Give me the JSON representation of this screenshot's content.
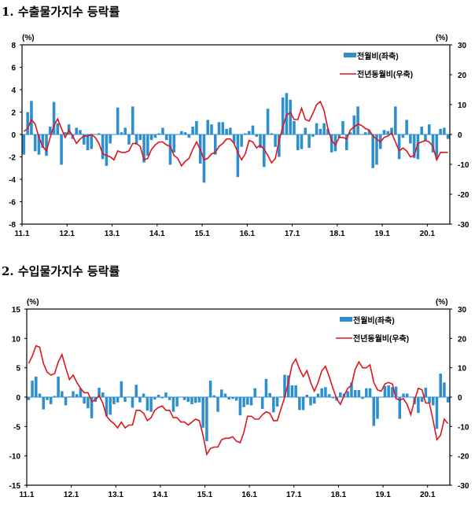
{
  "colors": {
    "bar": "#2f8fce",
    "line": "#e0141c"
  },
  "chart_data": [
    {
      "type": "bar+line",
      "title": "1. 수출물가지수 등락률",
      "left_unit": "(%)",
      "right_unit": "(%)",
      "ylim_left": [
        -8,
        8
      ],
      "yticks_left": [
        8,
        6,
        4,
        2,
        0,
        -2,
        -4,
        -6,
        -8
      ],
      "ylim_right": [
        -30,
        30
      ],
      "yticks_right": [
        30,
        20,
        10,
        0,
        -10,
        -20,
        -30
      ],
      "xtick_labels": [
        "11.1",
        "12.1",
        "13.1",
        "14.1",
        "15.1",
        "16.1",
        "17.1",
        "18.1",
        "19.1",
        "20.1"
      ],
      "legend": "top-right",
      "series": [
        {
          "name": "전월비(좌축)",
          "type": "bar",
          "axis": "left",
          "values": [
            -1.8,
            2.0,
            3.0,
            -1.5,
            -1.8,
            -1.2,
            -1.9,
            0.7,
            2.9,
            1.0,
            -2.7,
            0.2,
            0.9,
            -0.4,
            0.6,
            0.4,
            -0.9,
            -1.4,
            -1.3,
            0.0,
            0.1,
            -2.2,
            -2.8,
            -0.8,
            0.0,
            2.4,
            0.2,
            0.6,
            -0.9,
            2.5,
            -0.9,
            -0.5,
            -2.5,
            -1.9,
            -0.5,
            -0.3,
            0.1,
            0.6,
            -0.5,
            -2.7,
            -1.6,
            0.0,
            0.3,
            0.2,
            -0.3,
            0.7,
            1.2,
            -2.6,
            -4.3,
            1.3,
            0.9,
            -1.8,
            1.1,
            1.1,
            0.5,
            0.6,
            -0.8,
            -3.8,
            -1.1,
            0.1,
            0.3,
            0.8,
            -0.2,
            -1.2,
            -2.9,
            2.3,
            0.1,
            -1.1,
            -2.0,
            3.3,
            3.7,
            3.1,
            1.2,
            -1.4,
            -1.3,
            0.6,
            -1.2,
            -0.2,
            1.0,
            0.5,
            1.0,
            0.5,
            -1.6,
            -1.5,
            -0.3,
            1.2,
            -1.4,
            0.2,
            1.7,
            2.5,
            0.0,
            0.2,
            0.4,
            -3.0,
            -2.7,
            -1.3,
            0.4,
            0.3,
            0.6,
            2.5,
            -2.2,
            -0.3,
            1.3,
            -0.8,
            -2.1,
            -2.2,
            0.7,
            -0.6,
            0.9,
            -1.6,
            -2.2,
            0.5,
            0.6,
            -0.4
          ]
        },
        {
          "name": "전년동월비(우축)",
          "type": "line",
          "axis": "right",
          "values": [
            1,
            2,
            5,
            3.5,
            -1,
            -4,
            -5.5,
            -1,
            3,
            5.2,
            2,
            -1,
            1.5,
            -0.5,
            -3,
            -1.5,
            -0.5,
            -0.5,
            0,
            -1,
            -3,
            -6.5,
            -7,
            -7.5,
            -8.5,
            -5.5,
            -6,
            -6,
            -5.5,
            -3,
            -3,
            -4,
            -8.5,
            -8,
            -5,
            -3.5,
            -2.5,
            -2.5,
            -3.5,
            -4,
            -7,
            -8,
            -10.5,
            -9,
            -8,
            -5,
            -2.5,
            -5,
            -8.5,
            -8,
            -6.5,
            -6,
            -4,
            -3,
            -1.5,
            -1.5,
            -3,
            -6,
            -8.5,
            -6.5,
            -2,
            -2.5,
            -4.5,
            -3.5,
            -5,
            -7,
            -9.5,
            -8,
            -2,
            2.5,
            6.5,
            7.3,
            5,
            5,
            8.8,
            5,
            4.5,
            7,
            10,
            11,
            8,
            2,
            -2,
            -3.5,
            -1,
            -1,
            -1.5,
            1.5,
            2.5,
            3.5,
            3,
            2,
            1.5,
            -0.5,
            -1.5,
            -2.5,
            -1,
            -0.5,
            0.5,
            -2.5,
            -5.5,
            -4.5,
            -5.5,
            -7.5,
            -7,
            -3,
            -2.5,
            -2,
            -2.5,
            -4,
            -8.5,
            -6,
            -6,
            -6
          ]
        }
      ]
    },
    {
      "type": "bar+line",
      "title": "2. 수입물가지수 등락률",
      "left_unit": "(%)",
      "right_unit": "(%)",
      "ylim_left": [
        -15,
        15
      ],
      "yticks_left": [
        15,
        10,
        5,
        0,
        -5,
        -10,
        -15
      ],
      "ylim_right": [
        -30,
        30
      ],
      "yticks_right": [
        30,
        20,
        10,
        0,
        -10,
        -20,
        -30
      ],
      "xtick_labels": [
        "11.1",
        "12.1",
        "13.1",
        "14.1",
        "15.1",
        "16.1",
        "17.1",
        "18.1",
        "19.1",
        "20.1"
      ],
      "legend": "top-right",
      "series": [
        {
          "name": "전월비(좌축)",
          "type": "bar",
          "axis": "left",
          "values": [
            -0.5,
            2.8,
            3.5,
            0.6,
            -2.1,
            -0.5,
            -1.2,
            0.2,
            3.5,
            1.0,
            -1.4,
            0.1,
            1.0,
            0.5,
            1.5,
            -1.1,
            -1.9,
            -3.6,
            -0.8,
            1.6,
            0.8,
            -3.2,
            -3.0,
            -1.2,
            -0.9,
            2.7,
            -0.8,
            0.1,
            -1.8,
            2.1,
            -0.9,
            0.6,
            -2.3,
            -2.5,
            -0.4,
            0.4,
            -0.2,
            0.8,
            -0.5,
            -2.5,
            -1.6,
            0.0,
            -0.5,
            -0.8,
            -1.2,
            -1.0,
            -0.9,
            -5.2,
            -7.5,
            2.8,
            0.3,
            -2.5,
            1.3,
            0.6,
            -0.4,
            -0.3,
            -0.6,
            -3.1,
            -1.7,
            -1.3,
            -1.4,
            1.5,
            0.0,
            -2.0,
            3.1,
            0.7,
            -2.6,
            -1.6,
            0.1,
            3.8,
            3.7,
            2.0,
            2.0,
            -2.2,
            -2.2,
            0.4,
            -1.4,
            -1.1,
            0.6,
            1.5,
            1.7,
            0.5,
            -0.2,
            -0.6,
            0.8,
            0.6,
            1.0,
            2.5,
            1.2,
            1.2,
            -0.3,
            1.5,
            1.5,
            -4.9,
            -3.7,
            0.0,
            1.9,
            2.0,
            1.7,
            1.8,
            -3.7,
            0.6,
            0.6,
            0.0,
            -1.2,
            -2.7,
            -0.8,
            1.6,
            -1.0,
            -1.4,
            -5.4,
            4.0,
            2.5,
            -0.9
          ]
        },
        {
          "name": "전년동월비(우축)",
          "type": "line",
          "axis": "right",
          "values": [
            11.5,
            14,
            17.5,
            17,
            11.5,
            8.5,
            7.5,
            8,
            12,
            14.5,
            10,
            6,
            7.5,
            5,
            3,
            1.5,
            1.5,
            -1.5,
            -1,
            0.5,
            -2,
            -6.5,
            -8,
            -9,
            -10.5,
            -8.5,
            -10.5,
            -9.5,
            -9.5,
            -4.5,
            -4.5,
            -5.5,
            -8,
            -7,
            -4.5,
            -3.5,
            -3,
            -4.5,
            -4.5,
            -7,
            -7,
            -8.5,
            -8.5,
            -9.5,
            -8.5,
            -7.5,
            -8,
            -13,
            -19.5,
            -17.5,
            -17,
            -17,
            -14.5,
            -14,
            -14,
            -13.5,
            -15,
            -15.5,
            -12,
            -6.5,
            -6.5,
            -7.5,
            -7.5,
            -6,
            -5,
            -5.5,
            -8,
            -8,
            -4,
            0,
            5,
            11,
            13,
            9.5,
            7,
            9,
            5,
            2,
            5,
            9,
            10.5,
            7,
            3,
            -0.5,
            -2.5,
            0.5,
            3,
            4,
            9.5,
            12,
            10,
            10,
            11,
            5,
            2.5,
            2,
            4.5,
            5,
            4.5,
            -0.5,
            -1,
            -0.5,
            -2.5,
            -6,
            -1,
            3,
            2.5,
            -2,
            -2,
            -8,
            -14.5,
            -13,
            -7.5,
            -9
          ]
        }
      ]
    }
  ]
}
